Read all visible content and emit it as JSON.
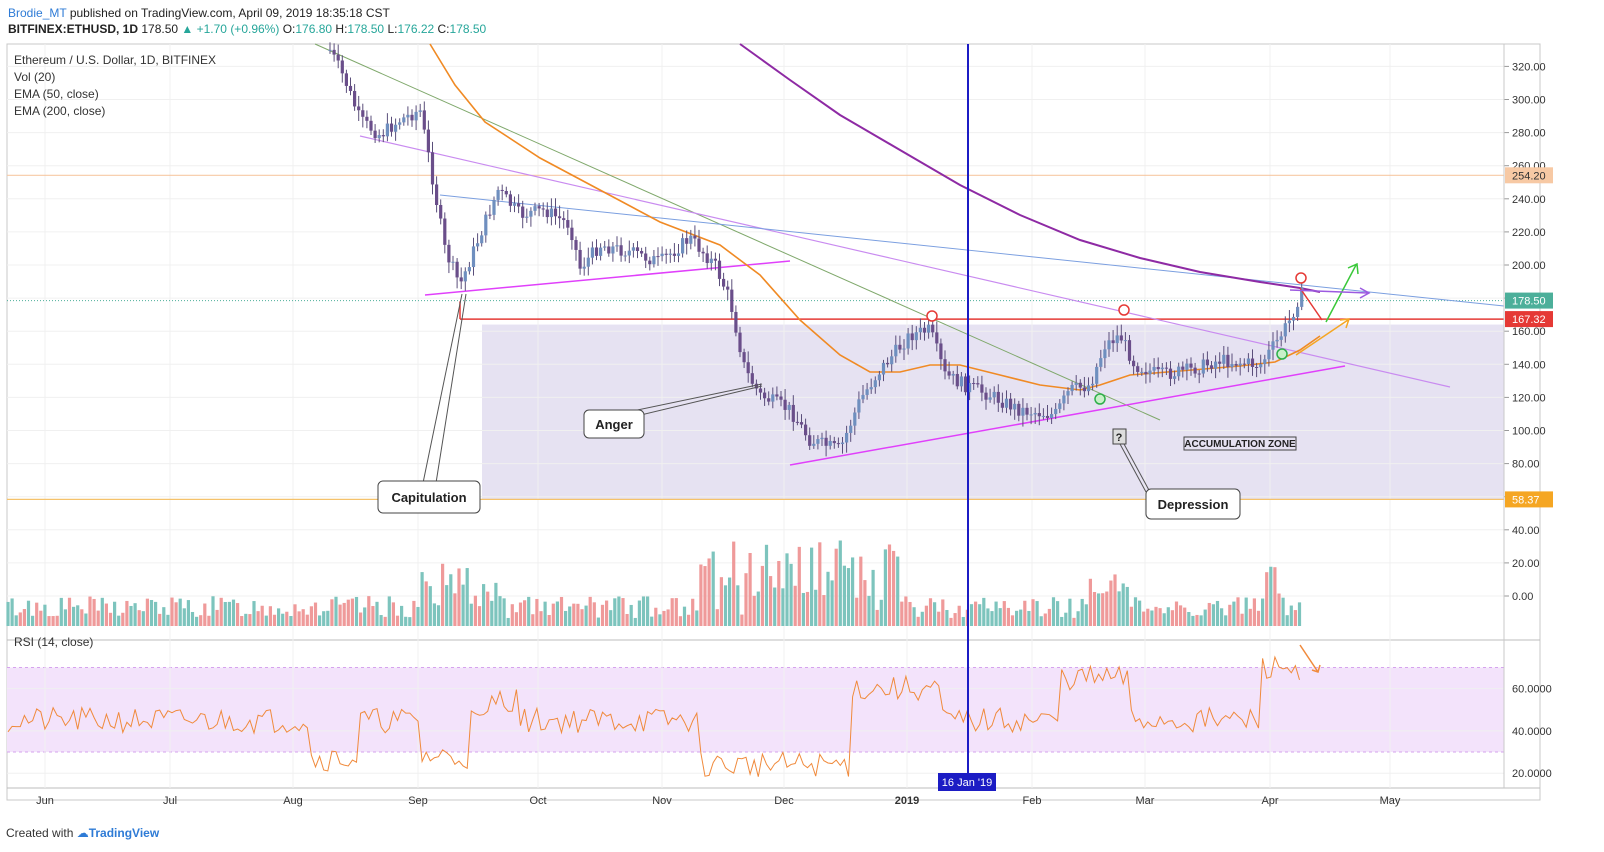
{
  "header": {
    "author": "Brodie_MT",
    "published_text": "published on TradingView.com, April 09, 2019 18:35:18 CST",
    "symbol": "BITFINEX:ETHUSD, 1D",
    "last": "178.50",
    "change": "▲ +1.70 (+0.96%)",
    "open_label": "O:",
    "open": "176.80",
    "high_label": "H:",
    "high": "178.50",
    "low_label": "L:",
    "low": "176.22",
    "close_label": "C:",
    "close": "178.50"
  },
  "legend": {
    "title": "Ethereum / U.S. Dollar, 1D, BITFINEX",
    "vol": "Vol (20)",
    "ema50": "EMA (50, close)",
    "ema200": "EMA (200, close)"
  },
  "rsi_label": "RSI (14, close)",
  "footer": {
    "created_with": "Created with",
    "brand": "TradingView"
  },
  "colors": {
    "up": "#6f8fbf",
    "down": "#6a4e8a",
    "ema50": "#f08a24",
    "ema200": "#8e2aa4",
    "vol_up": "#7dc4bd",
    "vol_down": "#ef9a9a",
    "zone": "#e6e2f2",
    "rsi_band": "#f3e3fb",
    "vline": "#1c1cc4",
    "red_line": "#e53935",
    "magenta": "#e040fb"
  },
  "chart_data": {
    "type": "candlestick",
    "x_ticks": [
      "Jun",
      "Jul",
      "Aug",
      "Sep",
      "Oct",
      "Nov",
      "Dec",
      "2019",
      "Feb",
      "Mar",
      "Apr",
      "May"
    ],
    "price_ticks": [
      "320.00",
      "300.00",
      "280.00",
      "260.00",
      "240.00",
      "220.00",
      "200.00",
      "180.00",
      "160.00",
      "140.00",
      "120.00",
      "100.00",
      "80.00",
      "60.00",
      "40.00",
      "20.00",
      "0.00"
    ],
    "price_ylim": [
      -8,
      330
    ],
    "rsi_ticks": [
      "60.0000",
      "40.0000",
      "20.0000"
    ],
    "rsi_ylim": [
      13,
      83
    ],
    "rsi_band": [
      30,
      70
    ],
    "price_labels": [
      {
        "value": 254.2,
        "text": "254.20",
        "color": "#f7c9a4",
        "text_color": "#333"
      },
      {
        "value": 178.5,
        "text": "178.50",
        "color": "#4caf9a",
        "text_color": "#fff"
      },
      {
        "value": 167.32,
        "text": "167.32",
        "color": "#e53935",
        "text_color": "#fff"
      },
      {
        "value": 58.37,
        "text": "58.37",
        "color": "#f5a623",
        "text_color": "#fff"
      }
    ],
    "date_marker": "16 Jan '19",
    "annotations": [
      "Capitulation",
      "Anger",
      "Depression",
      "ACCUMULATION ZONE",
      "?"
    ],
    "accumulation_zone": [
      58.37,
      164
    ],
    "resistance": 167.32,
    "support_level": 254.2,
    "ohlc_monthly_approx": [
      {
        "month": "Aug",
        "close": 280
      },
      {
        "month": "Sep",
        "close": 222
      },
      {
        "month": "Oct",
        "close": 200
      },
      {
        "month": "Nov",
        "close": 120
      },
      {
        "month": "Dec",
        "close": 133
      },
      {
        "month": "Jan",
        "close": 105
      },
      {
        "month": "Feb",
        "close": 134
      },
      {
        "month": "Mar",
        "close": 140
      },
      {
        "month": "Apr",
        "close": 178.5
      }
    ]
  }
}
